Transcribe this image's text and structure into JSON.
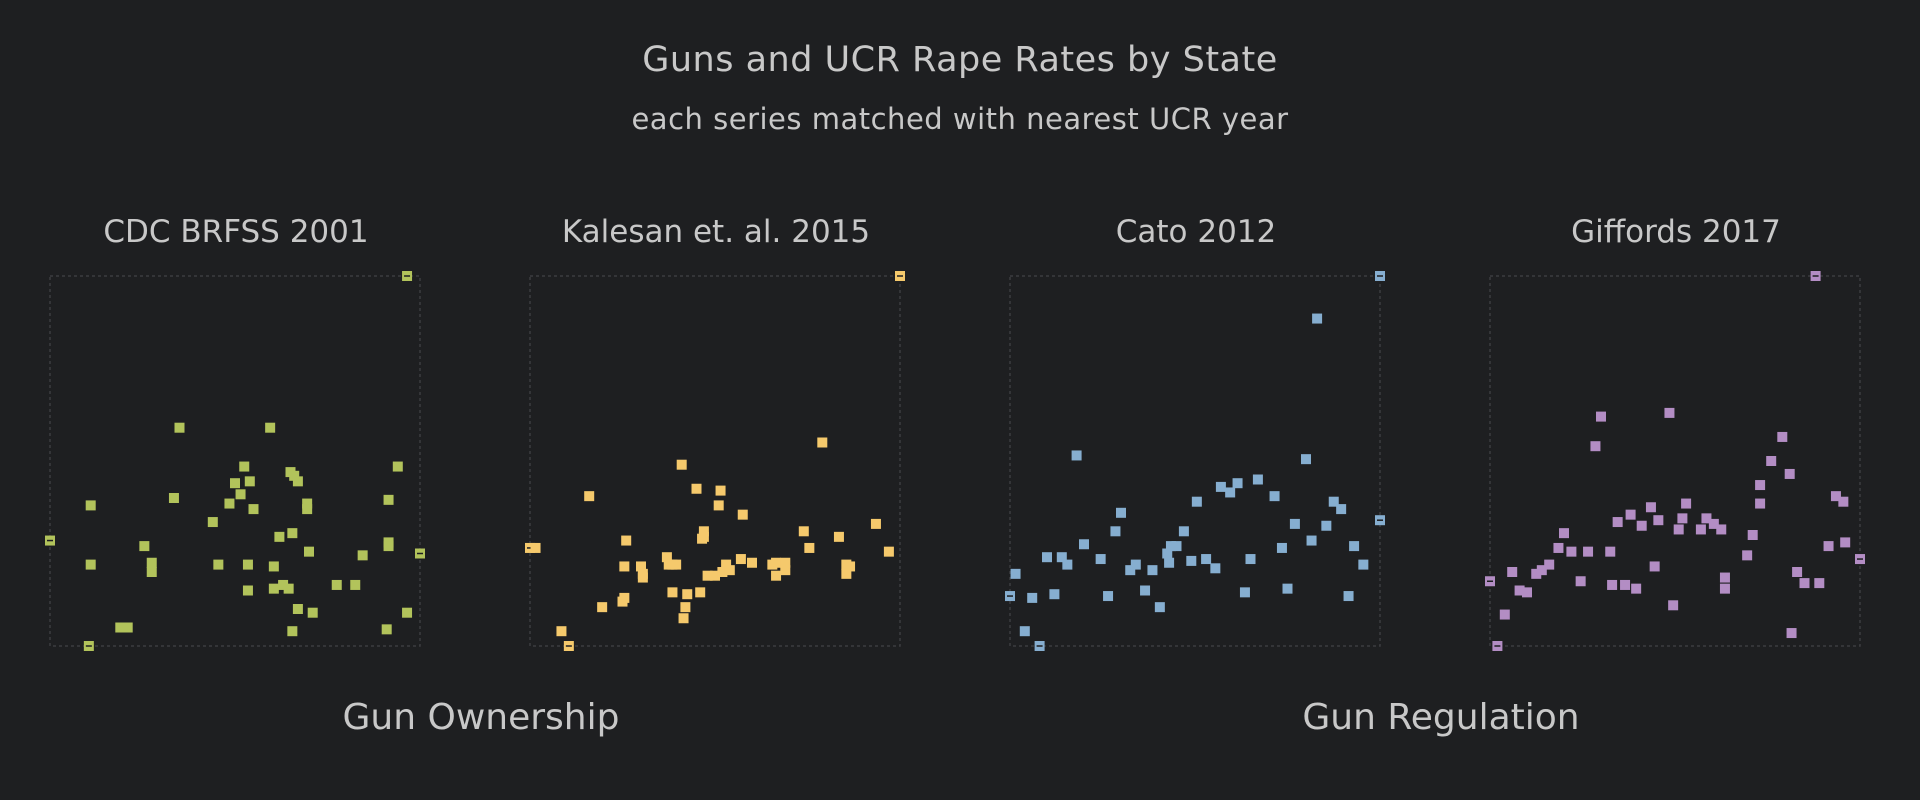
{
  "title": "Guns and UCR Rape Rates by State",
  "subtitle": "each series matched with nearest UCR year",
  "groups": {
    "ownership": "Gun Ownership",
    "regulation": "Gun Regulation"
  },
  "chart_data": [
    {
      "type": "scatter",
      "title": "CDC BRFSS 2001",
      "color": "#b2c35b",
      "xlim": [
        0,
        100
      ],
      "ylim": [
        0,
        100
      ],
      "points": [
        [
          0,
          28.5
        ],
        [
          10.5,
          0
        ],
        [
          96.5,
          100
        ],
        [
          100,
          25
        ],
        [
          11,
          38
        ],
        [
          11,
          22
        ],
        [
          19,
          5
        ],
        [
          21,
          5
        ],
        [
          25.5,
          27
        ],
        [
          27.5,
          22.5
        ],
        [
          27.5,
          20
        ],
        [
          33.5,
          40
        ],
        [
          35,
          59
        ],
        [
          44,
          33.5
        ],
        [
          45.5,
          22
        ],
        [
          48.5,
          38.5
        ],
        [
          50,
          44
        ],
        [
          51.5,
          41
        ],
        [
          52.5,
          48.5
        ],
        [
          53.5,
          22
        ],
        [
          53.5,
          15
        ],
        [
          54,
          44.5
        ],
        [
          55,
          37
        ],
        [
          59.5,
          59
        ],
        [
          60.5,
          21.5
        ],
        [
          60.5,
          15.5
        ],
        [
          62,
          29.5
        ],
        [
          63,
          16.5
        ],
        [
          64.5,
          15.5
        ],
        [
          65,
          47
        ],
        [
          65.5,
          30.5
        ],
        [
          65.5,
          4
        ],
        [
          66,
          46
        ],
        [
          67,
          44.5
        ],
        [
          67,
          10
        ],
        [
          69.5,
          38.5
        ],
        [
          69.5,
          37
        ],
        [
          70,
          25.5
        ],
        [
          71,
          9
        ],
        [
          77.5,
          16.5
        ],
        [
          82.5,
          16.5
        ],
        [
          84.5,
          24.5
        ],
        [
          91.5,
          39.5
        ],
        [
          91.5,
          28
        ],
        [
          91.5,
          27
        ],
        [
          91,
          4.5
        ],
        [
          94,
          48.5
        ],
        [
          96.5,
          9
        ]
      ]
    },
    {
      "type": "scatter",
      "title": "Kalesan et. al. 2015",
      "color": "#f5c96c",
      "xlim": [
        0,
        100
      ],
      "ylim": [
        0,
        100
      ],
      "points": [
        [
          0,
          26.5
        ],
        [
          10.5,
          0
        ],
        [
          100,
          100
        ],
        [
          1.5,
          26.5
        ],
        [
          8.5,
          4
        ],
        [
          16,
          40.5
        ],
        [
          19.5,
          10.5
        ],
        [
          25,
          12
        ],
        [
          25.5,
          13
        ],
        [
          25.5,
          21.5
        ],
        [
          26,
          28.5
        ],
        [
          30,
          21.5
        ],
        [
          30.5,
          19.5
        ],
        [
          30.5,
          18.5
        ],
        [
          37,
          24
        ],
        [
          37.5,
          22
        ],
        [
          38.5,
          14.5
        ],
        [
          38.5,
          22
        ],
        [
          39.5,
          22
        ],
        [
          41,
          49
        ],
        [
          41.5,
          7.5
        ],
        [
          42,
          10.5
        ],
        [
          42.5,
          14
        ],
        [
          45,
          42.5
        ],
        [
          46,
          14.5
        ],
        [
          46.5,
          29
        ],
        [
          47,
          31
        ],
        [
          47,
          29.5
        ],
        [
          48,
          19
        ],
        [
          50,
          19
        ],
        [
          51,
          38
        ],
        [
          51.5,
          42
        ],
        [
          52,
          20
        ],
        [
          53,
          22
        ],
        [
          54,
          20.5
        ],
        [
          57,
          23.5
        ],
        [
          57.5,
          35.5
        ],
        [
          60,
          22.5
        ],
        [
          65.5,
          22
        ],
        [
          66.5,
          19
        ],
        [
          66.5,
          22.5
        ],
        [
          69,
          22.5
        ],
        [
          69,
          20.5
        ],
        [
          74,
          31
        ],
        [
          75.5,
          26.5
        ],
        [
          79,
          55
        ],
        [
          83.5,
          29.5
        ],
        [
          85.5,
          22
        ],
        [
          85.5,
          19.5
        ],
        [
          86.5,
          21.5
        ],
        [
          93.5,
          33
        ],
        [
          97,
          25.5
        ]
      ]
    },
    {
      "type": "scatter",
      "title": "Cato 2012",
      "color": "#86aed0",
      "xlim": [
        0,
        100
      ],
      "ylim": [
        0,
        100
      ],
      "points": [
        [
          0,
          13.5
        ],
        [
          8,
          0
        ],
        [
          100,
          100
        ],
        [
          100,
          34
        ],
        [
          1.5,
          19.5
        ],
        [
          4,
          4
        ],
        [
          6,
          13
        ],
        [
          10,
          24
        ],
        [
          12,
          14
        ],
        [
          14,
          24
        ],
        [
          15.5,
          22
        ],
        [
          18,
          51.5
        ],
        [
          20,
          27.5
        ],
        [
          24.5,
          23.5
        ],
        [
          26.5,
          13.5
        ],
        [
          28.5,
          31
        ],
        [
          30,
          36
        ],
        [
          32.5,
          20.5
        ],
        [
          34,
          22
        ],
        [
          36.5,
          15
        ],
        [
          38.5,
          20.5
        ],
        [
          40.5,
          10.5
        ],
        [
          42.5,
          25
        ],
        [
          43,
          22.5
        ],
        [
          43.5,
          27
        ],
        [
          45,
          27
        ],
        [
          47,
          31
        ],
        [
          49,
          23
        ],
        [
          50.5,
          39
        ],
        [
          53,
          23.5
        ],
        [
          55.5,
          21
        ],
        [
          57,
          43
        ],
        [
          59.5,
          41.5
        ],
        [
          61.5,
          44
        ],
        [
          63.5,
          14.5
        ],
        [
          65,
          23.5
        ],
        [
          67,
          45
        ],
        [
          71.5,
          40.5
        ],
        [
          73.5,
          26.5
        ],
        [
          75,
          15.5
        ],
        [
          77,
          33
        ],
        [
          80,
          50.5
        ],
        [
          81.5,
          28.5
        ],
        [
          83,
          88.5
        ],
        [
          85.5,
          32.5
        ],
        [
          87.5,
          39
        ],
        [
          89.5,
          37
        ],
        [
          91.5,
          13.5
        ],
        [
          93,
          27
        ],
        [
          95.5,
          22
        ]
      ]
    },
    {
      "type": "scatter",
      "title": "Giffords 2017",
      "color": "#b38dc4",
      "xlim": [
        0,
        100
      ],
      "ylim": [
        0,
        100
      ],
      "points": [
        [
          0,
          17.5
        ],
        [
          2,
          0
        ],
        [
          88,
          100
        ],
        [
          100,
          23.5
        ],
        [
          4,
          8.5
        ],
        [
          6,
          20
        ],
        [
          8,
          15
        ],
        [
          10,
          14.5
        ],
        [
          12.5,
          19.5
        ],
        [
          14,
          20.5
        ],
        [
          16,
          22
        ],
        [
          18.5,
          26.5
        ],
        [
          20,
          30.5
        ],
        [
          22,
          25.5
        ],
        [
          24.5,
          17.5
        ],
        [
          26.5,
          25.5
        ],
        [
          28.5,
          54
        ],
        [
          30,
          62
        ],
        [
          32.5,
          25.5
        ],
        [
          33,
          16.5
        ],
        [
          34.5,
          33.5
        ],
        [
          36.5,
          16.5
        ],
        [
          38,
          35.5
        ],
        [
          39.5,
          15.5
        ],
        [
          41,
          32.5
        ],
        [
          43.5,
          37.5
        ],
        [
          44.5,
          21.5
        ],
        [
          45.5,
          34
        ],
        [
          48.5,
          63
        ],
        [
          49.5,
          11
        ],
        [
          51,
          31.5
        ],
        [
          52,
          34.5
        ],
        [
          53,
          38.5
        ],
        [
          57,
          31.5
        ],
        [
          58.5,
          34.5
        ],
        [
          60.5,
          33
        ],
        [
          62.5,
          31.5
        ],
        [
          63.5,
          15.5
        ],
        [
          63.5,
          18.5
        ],
        [
          69.5,
          24.5
        ],
        [
          71,
          30
        ],
        [
          73,
          38.5
        ],
        [
          73,
          43.5
        ],
        [
          76,
          50
        ],
        [
          79,
          56.5
        ],
        [
          81,
          46.5
        ],
        [
          81.5,
          3.5
        ],
        [
          83,
          20
        ],
        [
          85,
          17
        ],
        [
          89,
          17
        ],
        [
          91.5,
          27
        ],
        [
          93.5,
          40.5
        ],
        [
          95.5,
          39
        ],
        [
          96,
          28
        ]
      ]
    }
  ]
}
